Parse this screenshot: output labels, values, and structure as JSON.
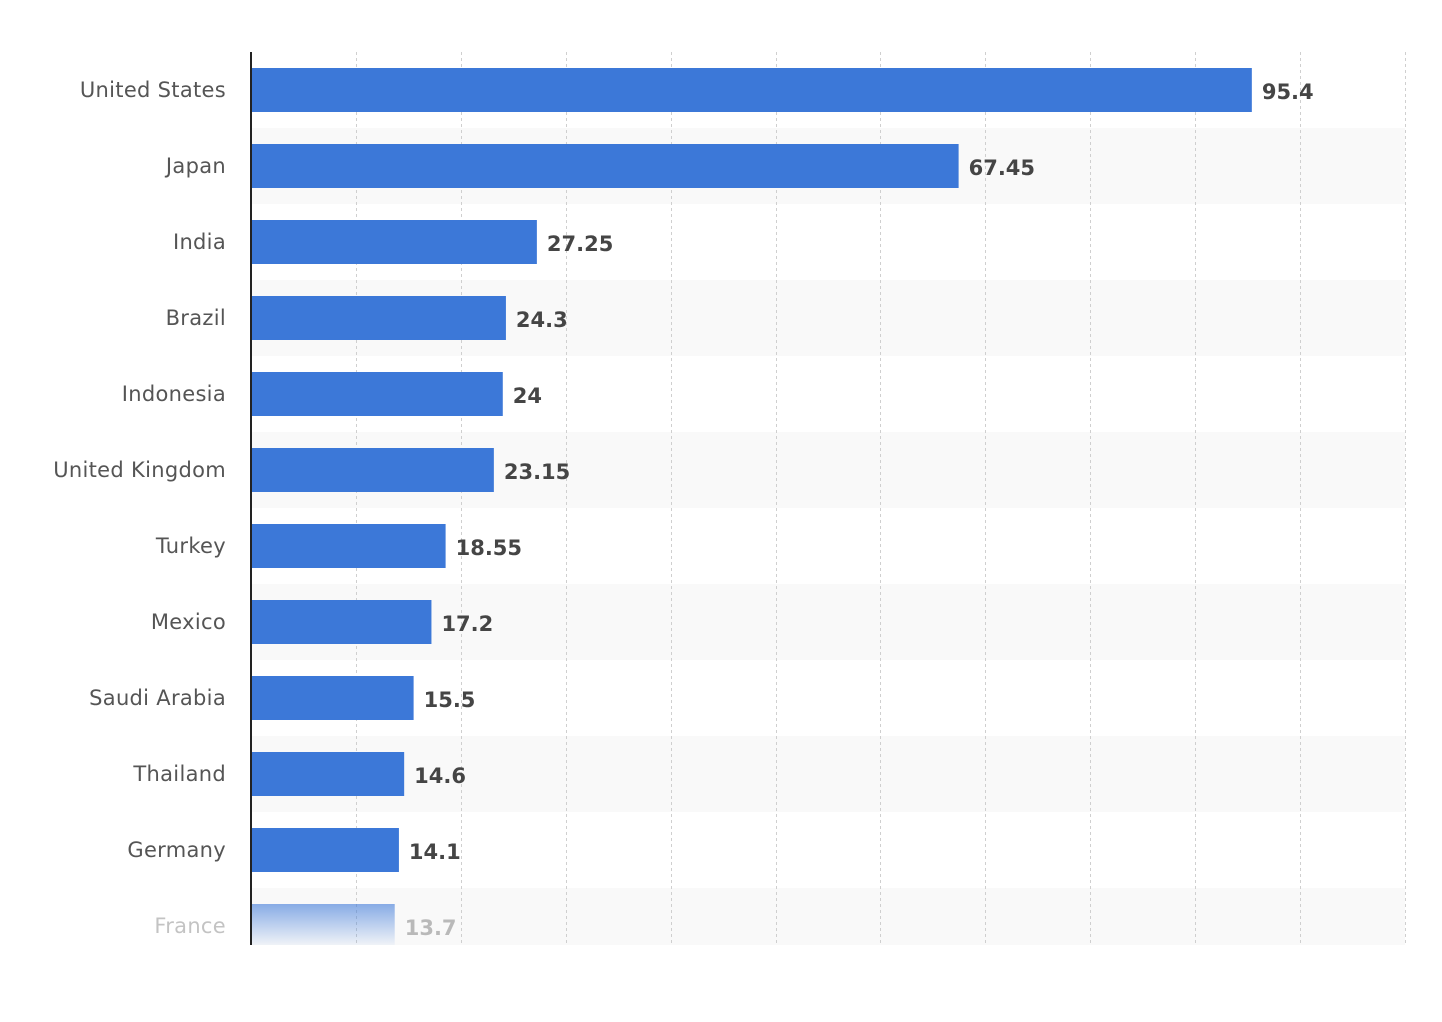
{
  "chart_data": {
    "type": "bar",
    "orientation": "horizontal",
    "categories": [
      "United States",
      "Japan",
      "India",
      "Brazil",
      "Indonesia",
      "United Kingdom",
      "Turkey",
      "Mexico",
      "Saudi Arabia",
      "Thailand",
      "Germany",
      "France"
    ],
    "values": [
      95.4,
      67.45,
      27.25,
      24.3,
      24,
      23.15,
      18.55,
      17.2,
      15.5,
      14.6,
      14.1,
      13.7
    ],
    "xlim": [
      0,
      110
    ],
    "grid": true,
    "bar_color": "#3c78d8",
    "label_color": "#555555",
    "value_label_color": "#454545",
    "stripe_color": "#f9f9f9",
    "last_item_faded": true
  }
}
